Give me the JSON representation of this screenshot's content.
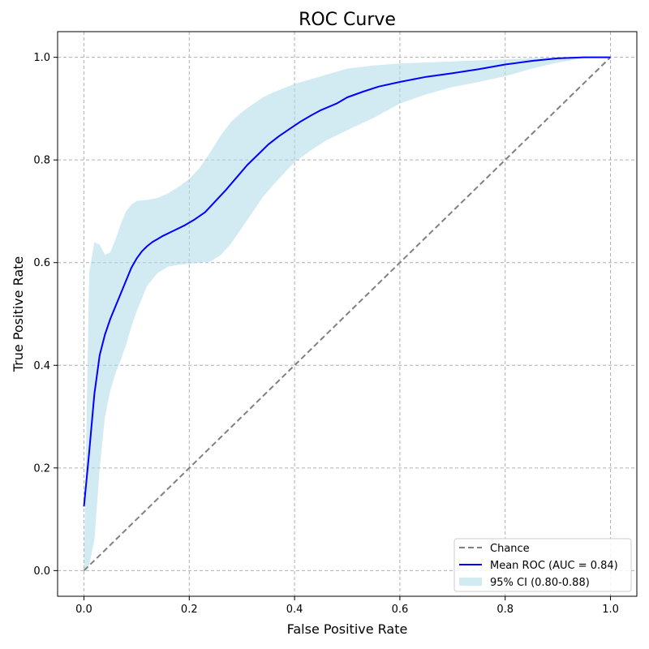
{
  "chart_data": {
    "type": "line",
    "title": "ROC Curve",
    "xlabel": "False Positive Rate",
    "ylabel": "True Positive Rate",
    "xlim": [
      -0.05,
      1.05
    ],
    "ylim": [
      -0.05,
      1.05
    ],
    "x_ticks": [
      0.0,
      0.2,
      0.4,
      0.6,
      0.8,
      1.0
    ],
    "y_ticks": [
      0.0,
      0.2,
      0.4,
      0.6,
      0.8,
      1.0
    ],
    "x_tick_labels": [
      "0.0",
      "0.2",
      "0.4",
      "0.6",
      "0.8",
      "1.0"
    ],
    "y_tick_labels": [
      "0.0",
      "0.2",
      "0.4",
      "0.6",
      "0.8",
      "1.0"
    ],
    "grid": true,
    "legend_position": "lower-right",
    "series": [
      {
        "name": "Chance",
        "style": "dashed",
        "color": "#808080",
        "x": [
          0.0,
          1.0
        ],
        "y": [
          0.0,
          1.0
        ]
      },
      {
        "name": "Mean ROC (AUC = 0.84)",
        "style": "solid",
        "color": "#0000ff",
        "x": [
          0.0,
          0.01,
          0.02,
          0.03,
          0.04,
          0.05,
          0.06,
          0.07,
          0.08,
          0.09,
          0.1,
          0.11,
          0.12,
          0.13,
          0.14,
          0.15,
          0.17,
          0.19,
          0.21,
          0.23,
          0.25,
          0.27,
          0.29,
          0.31,
          0.33,
          0.35,
          0.37,
          0.39,
          0.41,
          0.43,
          0.45,
          0.48,
          0.5,
          0.53,
          0.56,
          0.6,
          0.65,
          0.7,
          0.75,
          0.8,
          0.85,
          0.9,
          0.95,
          1.0
        ],
        "y": [
          0.125,
          0.23,
          0.345,
          0.42,
          0.46,
          0.49,
          0.515,
          0.54,
          0.565,
          0.59,
          0.608,
          0.622,
          0.632,
          0.64,
          0.646,
          0.652,
          0.662,
          0.672,
          0.684,
          0.698,
          0.72,
          0.742,
          0.766,
          0.79,
          0.81,
          0.83,
          0.846,
          0.86,
          0.874,
          0.886,
          0.897,
          0.91,
          0.922,
          0.933,
          0.943,
          0.952,
          0.962,
          0.969,
          0.977,
          0.986,
          0.993,
          0.998,
          1.0,
          1.0
        ]
      }
    ],
    "ci_band": {
      "name": "95% CI (0.80-0.88)",
      "color": "#add8e6",
      "x": [
        0.0,
        0.01,
        0.02,
        0.03,
        0.04,
        0.05,
        0.06,
        0.07,
        0.08,
        0.09,
        0.1,
        0.12,
        0.14,
        0.16,
        0.18,
        0.2,
        0.22,
        0.24,
        0.26,
        0.28,
        0.3,
        0.32,
        0.34,
        0.36,
        0.38,
        0.4,
        0.43,
        0.46,
        0.5,
        0.55,
        0.6,
        0.65,
        0.7,
        0.75,
        0.8,
        0.85,
        0.9,
        0.95,
        1.0
      ],
      "upper": [
        0.0,
        0.58,
        0.64,
        0.635,
        0.615,
        0.62,
        0.645,
        0.675,
        0.7,
        0.713,
        0.72,
        0.722,
        0.726,
        0.735,
        0.748,
        0.763,
        0.785,
        0.815,
        0.848,
        0.875,
        0.893,
        0.908,
        0.922,
        0.932,
        0.94,
        0.948,
        0.957,
        0.966,
        0.978,
        0.984,
        0.988,
        0.99,
        0.992,
        0.994,
        0.996,
        0.998,
        1.0,
        1.0,
        1.0
      ],
      "lower": [
        0.0,
        0.01,
        0.06,
        0.2,
        0.3,
        0.35,
        0.385,
        0.41,
        0.44,
        0.475,
        0.505,
        0.555,
        0.58,
        0.592,
        0.596,
        0.598,
        0.6,
        0.602,
        0.615,
        0.638,
        0.668,
        0.698,
        0.728,
        0.752,
        0.774,
        0.796,
        0.818,
        0.838,
        0.858,
        0.882,
        0.91,
        0.928,
        0.942,
        0.952,
        0.963,
        0.978,
        0.99,
        0.998,
        1.0
      ]
    }
  }
}
